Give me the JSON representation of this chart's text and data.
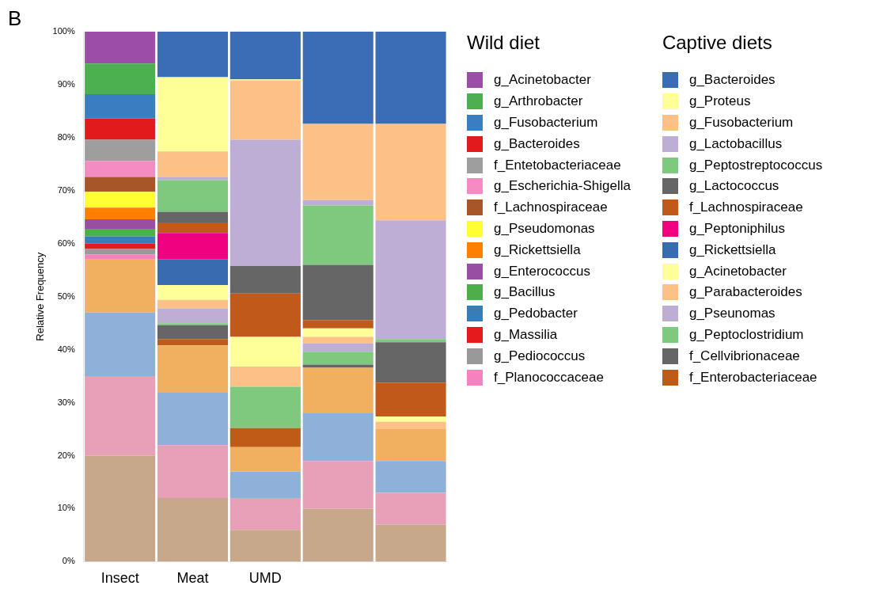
{
  "chart_data": {
    "type": "bar",
    "title": "B",
    "ylabel": "Relative Frequency",
    "categories": [
      "Insect",
      "Meat",
      "UMD",
      null,
      null
    ],
    "stacked": true,
    "legend": "right",
    "grid": false,
    "ylim": [
      0,
      100
    ],
    "yticks": [
      {
        "value": 0,
        "label": "0%"
      },
      {
        "value": 10,
        "label": "10%"
      },
      {
        "value": 20,
        "label": "20%"
      },
      {
        "value": 30,
        "label": "30%"
      },
      {
        "value": 40,
        "label": "40%"
      },
      {
        "value": 50,
        "label": "50%"
      },
      {
        "value": 60,
        "label": "60%"
      },
      {
        "value": 70,
        "label": "70%"
      },
      {
        "value": 80,
        "label": "80%"
      },
      {
        "value": 90,
        "label": "90%"
      },
      {
        "value": 100,
        "label": "100%"
      }
    ],
    "annotations": [
      "Wild diet",
      "Captive diets"
    ],
    "series": [
      {
        "color": "#c8a88a",
        "values": [
          20,
          12,
          6,
          10,
          7
        ]
      },
      {
        "color": "#e8a0b8",
        "values": [
          15,
          10,
          6,
          9,
          6
        ]
      },
      {
        "color": "#8fb0d8",
        "values": [
          12,
          10,
          5,
          9,
          6
        ]
      },
      {
        "color": "#f0b060",
        "values": [
          10,
          8.8,
          4.6,
          8.6,
          6
        ]
      },
      {
        "name": "f_Planococcaceae",
        "color": "#f781bf",
        "values": [
          1,
          null,
          null,
          null,
          null
        ]
      },
      {
        "name": "g_Pediococcus",
        "color": "#999999",
        "values": [
          1,
          null,
          null,
          null,
          null
        ]
      },
      {
        "name": "g_Massilia",
        "color": "#e41a1c",
        "values": [
          1,
          null,
          null,
          null,
          null
        ]
      },
      {
        "name": "g_Pedobacter",
        "color": "#377eb8",
        "values": [
          1.4,
          null,
          null,
          null,
          null
        ]
      },
      {
        "name": "g_Bacillus",
        "color": "#4daf4a",
        "values": [
          1.4,
          null,
          null,
          null,
          null
        ]
      },
      {
        "name": "g_Enterococcus",
        "color": "#984ea3",
        "values": [
          1.8,
          null,
          null,
          null,
          null
        ]
      },
      {
        "name": "g_Rickettsiella",
        "color": "#ff7f00",
        "values": [
          2.2,
          null,
          null,
          null,
          null
        ]
      },
      {
        "name": "g_Pseudomonas",
        "color": "#ffff33",
        "values": [
          3,
          null,
          null,
          null,
          null
        ]
      },
      {
        "name": "f_Lachnospiraceae",
        "color": "#a65628",
        "values": [
          2.8,
          null,
          null,
          null,
          null
        ]
      },
      {
        "name": "g_Escherichia-Shigella",
        "color": "#f48cc3",
        "values": [
          3,
          null,
          null,
          null,
          null
        ]
      },
      {
        "name": "f_Entetobacteriaceae",
        "color": "#9e9e9e",
        "values": [
          4,
          null,
          null,
          null,
          null
        ]
      },
      {
        "name": "g_Bacteroides",
        "color": "#e31a1c",
        "values": [
          4,
          null,
          null,
          null,
          null
        ]
      },
      {
        "name": "g_Fusobacterium",
        "color": "#3a7dc0",
        "values": [
          4.6,
          null,
          null,
          null,
          null
        ]
      },
      {
        "name": "g_Arthrobacter",
        "color": "#4caf50",
        "values": [
          5.8,
          null,
          null,
          null,
          null
        ]
      },
      {
        "name": "g_Acinetobacter",
        "color": "#9b4ea6",
        "values": [
          6,
          null,
          null,
          null,
          null
        ]
      },
      {
        "name": "f_Enterobacteriaceae",
        "color": "#bf5b17",
        "values": [
          null,
          1.2,
          3.6,
          0,
          0
        ]
      },
      {
        "name": "f_Cellvibrionaceae",
        "color": "#666666",
        "values": [
          null,
          2.6,
          0,
          0.6,
          0
        ]
      },
      {
        "name": "g_Peptoclostridium",
        "color": "#7fc97f",
        "values": [
          null,
          0.4,
          7.8,
          2.4,
          0
        ]
      },
      {
        "name": "g_Pseunomas",
        "color": "#beaed4",
        "values": [
          null,
          2.8,
          0,
          1.6,
          0
        ]
      },
      {
        "name": "g_Parabacteroides",
        "color": "#fdc086",
        "values": [
          null,
          1.6,
          3.8,
          1.2,
          1.4
        ]
      },
      {
        "name": "g_Acinetobacter",
        "color": "#ffff99",
        "values": [
          null,
          2.8,
          5.6,
          1.6,
          1
        ]
      },
      {
        "name": "g_Rickettsiella",
        "color": "#386cb0",
        "values": [
          null,
          4.8,
          0,
          0,
          0
        ]
      },
      {
        "name": "g_Peptoniphilus",
        "color": "#f0027f",
        "values": [
          null,
          5,
          0,
          0,
          0
        ]
      },
      {
        "name": "f_Lachnospiraceae",
        "color": "#c0591a",
        "values": [
          null,
          2,
          8.2,
          1.6,
          6.4
        ]
      },
      {
        "name": "g_Lactococcus",
        "color": "#666667",
        "values": [
          null,
          2,
          5.2,
          10.4,
          7.6
        ]
      },
      {
        "name": "g_Peptostreptococcus",
        "color": "#7fc97e",
        "values": [
          null,
          6,
          0,
          11.2,
          0.6
        ]
      },
      {
        "name": "g_Lactobacillus",
        "color": "#beaed5",
        "values": [
          null,
          0.6,
          23.8,
          1,
          22.4
        ]
      },
      {
        "name": "g_Fusobacterium",
        "color": "#fdc087",
        "values": [
          null,
          4.8,
          11.2,
          14.4,
          18.2
        ]
      },
      {
        "name": "g_Proteus",
        "color": "#ffff98",
        "values": [
          null,
          14,
          0.2,
          0,
          0
        ]
      },
      {
        "name": "g_Bacteroides",
        "color": "#3a6db5",
        "values": [
          null,
          8.6,
          9,
          17.4,
          17.8
        ]
      }
    ]
  }
}
